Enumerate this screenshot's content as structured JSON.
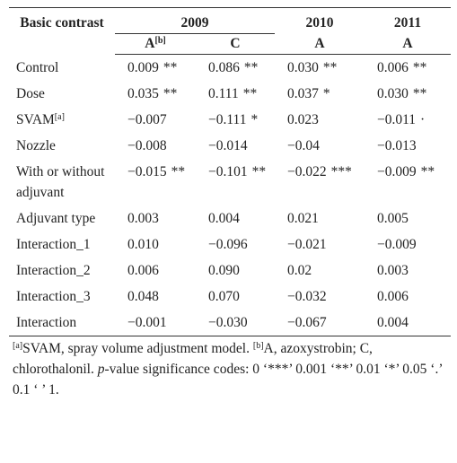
{
  "table": {
    "header": {
      "stub": "Basic contrast",
      "years": [
        {
          "label": "2009",
          "span": 2
        },
        {
          "label": "2010",
          "span": 1
        },
        {
          "label": "2011",
          "span": 1
        }
      ],
      "subheads": [
        {
          "label": "A",
          "note": "[b]"
        },
        {
          "label": "C"
        },
        {
          "label": "A"
        },
        {
          "label": "A"
        }
      ]
    },
    "rows": [
      {
        "label": "Control",
        "cells": [
          {
            "value": "0.009",
            "sig": "**"
          },
          {
            "value": "0.086",
            "sig": "**"
          },
          {
            "value": "0.030",
            "sig": "**"
          },
          {
            "value": "0.006",
            "sig": "**"
          }
        ]
      },
      {
        "label": "Dose",
        "cells": [
          {
            "value": "0.035",
            "sig": "**"
          },
          {
            "value": "0.111",
            "sig": "**"
          },
          {
            "value": "0.037",
            "sig": "*"
          },
          {
            "value": "0.030",
            "sig": "**"
          }
        ]
      },
      {
        "label": "SVAM",
        "note": "[a]",
        "cells": [
          {
            "value": "−0.007"
          },
          {
            "value": "−0.111",
            "sig": "*"
          },
          {
            "value": "0.023"
          },
          {
            "value": "−0.011",
            "sig": "·"
          }
        ]
      },
      {
        "label": "Nozzle",
        "cells": [
          {
            "value": "−0.008"
          },
          {
            "value": "−0.014"
          },
          {
            "value": "−0.04"
          },
          {
            "value": "−0.013"
          }
        ]
      },
      {
        "label": "With or without adjuvant",
        "cells": [
          {
            "value": "−0.015",
            "sig": "**"
          },
          {
            "value": "−0.101",
            "sig": "**"
          },
          {
            "value": "−0.022",
            "sig": "***"
          },
          {
            "value": "−0.009",
            "sig": "**"
          }
        ]
      },
      {
        "label": "Adjuvant type",
        "cells": [
          {
            "value": "0.003"
          },
          {
            "value": "0.004"
          },
          {
            "value": "0.021"
          },
          {
            "value": "0.005"
          }
        ]
      },
      {
        "label": "Interaction_1",
        "cells": [
          {
            "value": "0.010"
          },
          {
            "value": "−0.096"
          },
          {
            "value": "−0.021"
          },
          {
            "value": "−0.009"
          }
        ]
      },
      {
        "label": "Interaction_2",
        "cells": [
          {
            "value": "0.006"
          },
          {
            "value": "0.090"
          },
          {
            "value": "0.02"
          },
          {
            "value": "0.003"
          }
        ]
      },
      {
        "label": "Interaction_3",
        "cells": [
          {
            "value": "0.048"
          },
          {
            "value": "0.070"
          },
          {
            "value": "−0.032"
          },
          {
            "value": "0.006"
          }
        ]
      },
      {
        "label": "Interaction",
        "cells": [
          {
            "value": "−0.001"
          },
          {
            "value": "−0.030"
          },
          {
            "value": "−0.067"
          },
          {
            "value": "0.004"
          }
        ]
      }
    ],
    "footnote": [
      {
        "style": "sup",
        "text": "[a]"
      },
      {
        "style": "plain",
        "text": "SVAM, spray volume adjustment model. "
      },
      {
        "style": "sup",
        "text": "[b]"
      },
      {
        "style": "plain",
        "text": "A, azoxystrobin; C, chlorothalonil. "
      },
      {
        "style": "italic",
        "text": "p"
      },
      {
        "style": "plain",
        "text": "-value significance codes: 0 ‘***’ 0.001 ‘**’ 0.01 ‘*’ 0.05 ‘.’ 0.1 ‘ ’ 1."
      }
    ]
  }
}
